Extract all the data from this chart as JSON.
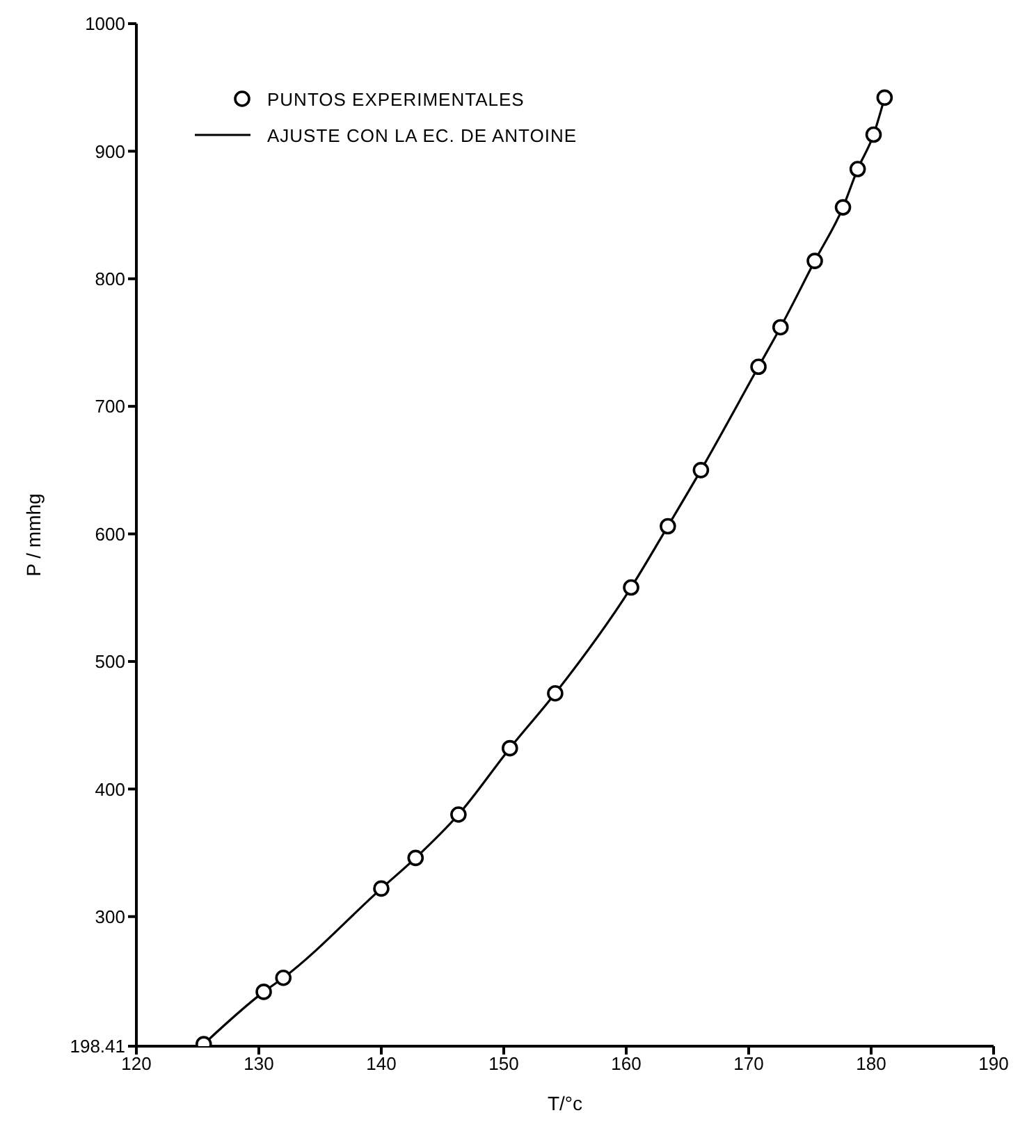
{
  "chart_data": {
    "type": "scatter",
    "xlabel": "T/°c",
    "ylabel": "P / mmhg",
    "xlim": [
      120,
      190
    ],
    "xticks": [
      120,
      130,
      140,
      150,
      160,
      170,
      180,
      190
    ],
    "ylim": [
      198.41,
      1000
    ],
    "yticks": [
      198.41,
      300,
      400,
      500,
      600,
      700,
      800,
      900,
      1000
    ],
    "grid": false,
    "legend": "top left",
    "series": [
      {
        "name": "PUNTOS EXPERIMENTALES",
        "marker": "circle",
        "color": "#000000",
        "x": [
          125.5,
          130.4,
          132.0,
          140.0,
          142.8,
          146.3,
          150.5,
          154.2,
          160.4,
          163.4,
          166.1,
          170.8,
          172.6,
          175.4,
          177.7,
          178.9,
          180.2,
          181.1
        ],
        "values": [
          200,
          241,
          252,
          322,
          346,
          380,
          432,
          475,
          558,
          606,
          650,
          731,
          762,
          814,
          856,
          886,
          913,
          942
        ]
      },
      {
        "name": "AJUSTE CON LA EC. DE ANTOINE",
        "type": "line",
        "marker": "none",
        "line_style": "solid",
        "color": "#000000",
        "x": [
          125.5,
          130.4,
          132.0,
          140.0,
          142.8,
          146.3,
          150.5,
          154.2,
          160.4,
          163.4,
          166.1,
          170.8,
          172.6,
          175.4,
          177.7,
          178.9,
          180.2,
          181.1
        ],
        "values": [
          200,
          241,
          252,
          322,
          346,
          380,
          432,
          475,
          558,
          606,
          650,
          731,
          762,
          814,
          856,
          886,
          913,
          942
        ]
      }
    ]
  }
}
